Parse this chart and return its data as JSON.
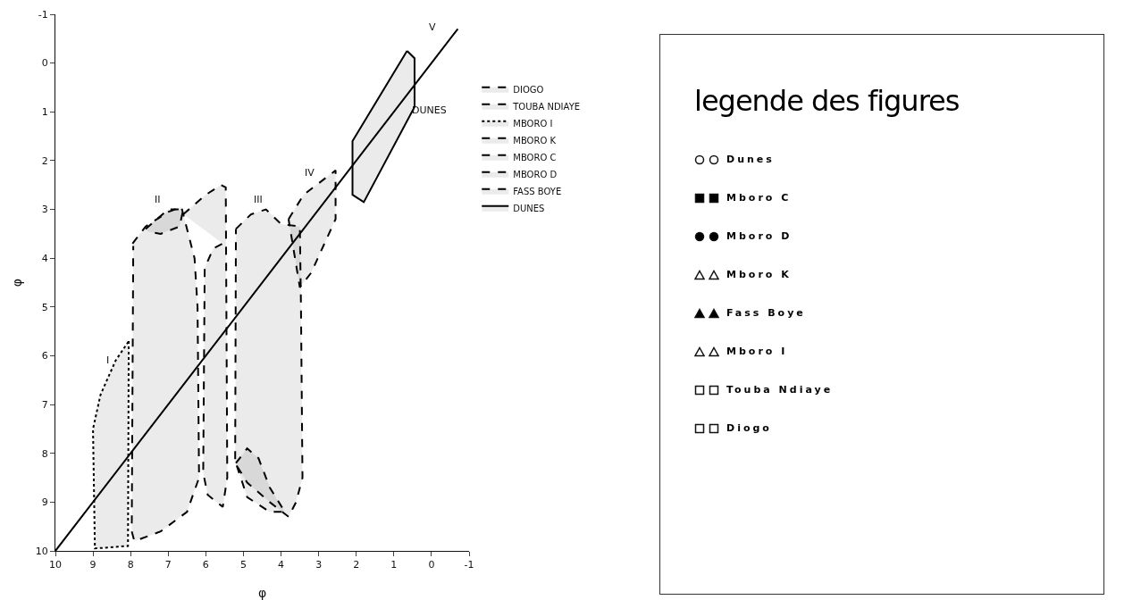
{
  "chart_data": [
    {
      "type": "line",
      "xlabel": "φ",
      "ylabel": "φ",
      "xlim": [
        10,
        -1
      ],
      "ylim": [
        10,
        -1
      ],
      "xticks": [
        10,
        9,
        8,
        7,
        6,
        5,
        4,
        3,
        2,
        1,
        0,
        -1
      ],
      "yticks": [
        -1,
        0,
        1,
        2,
        3,
        4,
        5,
        6,
        7,
        8,
        9,
        10
      ],
      "grid": false,
      "legend": "right",
      "marker": "none",
      "series": [
        {
          "name": "DIOGO",
          "type": "area",
          "color": "#000000",
          "line_style": "dashed",
          "x": [
            6.6,
            6.0,
            5.6,
            5.47,
            5.43,
            5.55,
            5.95,
            6.07,
            6.03,
            5.8,
            5.55
          ],
          "values": [
            3.1,
            2.7,
            2.5,
            2.55,
            8.5,
            9.1,
            8.85,
            8.4,
            4.2,
            3.8,
            3.7
          ]
        },
        {
          "name": "TOUBA NDIAYE",
          "type": "area",
          "color": "#000000",
          "line_style": "dashed",
          "x": [
            7.95,
            7.6,
            7.0,
            6.65,
            6.55,
            6.3,
            6.22,
            6.18,
            6.5,
            7.2,
            7.9,
            7.97,
            7.93
          ],
          "values": [
            3.7,
            3.35,
            3.05,
            2.95,
            3.25,
            4.0,
            5.0,
            8.5,
            9.2,
            9.6,
            9.8,
            9.6,
            3.75
          ]
        },
        {
          "name": "MBORO I",
          "type": "area",
          "color": "#000000",
          "line_style": "dotted",
          "x": [
            8.05,
            8.07,
            8.95,
            9.0,
            8.8,
            8.4,
            8.05
          ],
          "values": [
            5.7,
            9.9,
            9.95,
            7.5,
            6.8,
            6.1,
            5.7
          ]
        },
        {
          "name": "MBORO K",
          "type": "area",
          "color": "#000000",
          "line_style": "dashed",
          "x": [
            3.8,
            3.4,
            2.55,
            2.55,
            3.2,
            3.5,
            3.8
          ],
          "values": [
            3.2,
            2.7,
            2.2,
            3.2,
            4.3,
            4.6,
            3.2
          ]
        },
        {
          "name": "MBORO C",
          "type": "area",
          "color": "#000000",
          "line_style": "dashed",
          "x": [
            5.2,
            4.9,
            4.6,
            4.3,
            3.9,
            4.3,
            4.9,
            5.2
          ],
          "values": [
            8.2,
            7.9,
            8.1,
            8.7,
            9.2,
            9.2,
            8.9,
            8.2
          ]
        },
        {
          "name": "MBORO D",
          "type": "area",
          "color": "#000000",
          "line_style": "dashed",
          "x": [
            5.2,
            4.8,
            4.4,
            4.0,
            3.5,
            3.47,
            3.43,
            3.6,
            3.8,
            4.3,
            4.9,
            5.22,
            5.2
          ],
          "values": [
            3.4,
            3.1,
            3.0,
            3.3,
            3.35,
            5,
            8.5,
            9.0,
            9.3,
            9.0,
            8.6,
            8.2,
            3.4
          ]
        },
        {
          "name": "FASS BOYE",
          "type": "area",
          "color": "#000000",
          "line_style": "dashed",
          "x": [
            7.6,
            7.3,
            7.0,
            6.6,
            6.7,
            7.2,
            7.55
          ],
          "values": [
            3.4,
            3.2,
            3.0,
            3.0,
            3.35,
            3.5,
            3.45
          ]
        },
        {
          "name": "DUNES",
          "type": "area",
          "color": "#000000",
          "line_style": "solid",
          "x": [
            0.65,
            0.45,
            0.45,
            1.8,
            2.1,
            2.1,
            0.65
          ],
          "values": [
            -0.25,
            -0.1,
            0.9,
            2.85,
            2.7,
            1.6,
            -0.25
          ]
        },
        {
          "color": "#000000",
          "line_style": "solid",
          "x": [
            10,
            8,
            6,
            4,
            2,
            0,
            -0.7
          ],
          "values": [
            10,
            8,
            6,
            4,
            2,
            0,
            -0.7
          ]
        }
      ],
      "annotations": [
        "I",
        "II",
        "III",
        "IV",
        "V",
        "DUNES"
      ]
    },
    {
      "type": "other",
      "title": "legende des figures",
      "series": [
        {
          "name": "Dunes",
          "marker": "circle",
          "color": "#ffffff"
        },
        {
          "name": "Mboro C",
          "marker": "square",
          "color": "#000000"
        },
        {
          "name": "Mboro D",
          "marker": "circle",
          "color": "#000000"
        },
        {
          "name": "Mboro K",
          "marker": "triangle",
          "color": "#ffffff"
        },
        {
          "name": "Fass Boye",
          "marker": "triangle",
          "color": "#000000"
        },
        {
          "name": "Mboro I",
          "marker": "triangle",
          "color": "#ffffff"
        },
        {
          "name": "Touba Ndiaye",
          "marker": "square",
          "color": "#ffffff"
        },
        {
          "name": "Diogo",
          "marker": "square",
          "color": "#ffffff"
        }
      ]
    }
  ]
}
